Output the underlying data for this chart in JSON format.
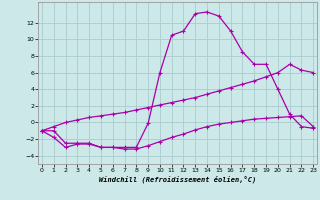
{
  "xlabel": "Windchill (Refroidissement éolien,°C)",
  "background_color": "#cce8e8",
  "grid_color": "#aacccc",
  "line_color": "#aa00aa",
  "x_ticks": [
    0,
    1,
    2,
    3,
    4,
    5,
    6,
    7,
    8,
    9,
    10,
    11,
    12,
    13,
    14,
    15,
    16,
    17,
    18,
    19,
    20,
    21,
    22,
    23
  ],
  "y_ticks": [
    -4,
    -2,
    0,
    2,
    4,
    6,
    8,
    10,
    12
  ],
  "xlim": [
    -0.3,
    23.3
  ],
  "ylim": [
    -5.0,
    14.5
  ],
  "series": {
    "line1_x": [
      0,
      1,
      2,
      3,
      4,
      5,
      6,
      7,
      8,
      9,
      10,
      11,
      12,
      13,
      14,
      15,
      16,
      17,
      18,
      19,
      20,
      21,
      22,
      23
    ],
    "line1_y": [
      -1.0,
      -1.8,
      -3.0,
      -2.6,
      -2.6,
      -3.0,
      -3.0,
      -3.0,
      -3.0,
      -0.1,
      6.0,
      10.5,
      11.0,
      13.1,
      13.3,
      12.8,
      11.0,
      8.5,
      7.0,
      7.0,
      4.0,
      1.0,
      -0.5,
      -0.7
    ],
    "line2_x": [
      0,
      1,
      2,
      3,
      4,
      5,
      6,
      7,
      8,
      9,
      10,
      11,
      12,
      13,
      14,
      15,
      16,
      17,
      18,
      19,
      20,
      21,
      22,
      23
    ],
    "line2_y": [
      -1.0,
      -0.5,
      0.0,
      0.3,
      0.6,
      0.8,
      1.0,
      1.2,
      1.5,
      1.8,
      2.1,
      2.4,
      2.7,
      3.0,
      3.4,
      3.8,
      4.2,
      4.6,
      5.0,
      5.5,
      6.0,
      7.0,
      6.3,
      6.0
    ],
    "line3_x": [
      0,
      1,
      2,
      3,
      4,
      5,
      6,
      7,
      8,
      9,
      10,
      11,
      12,
      13,
      14,
      15,
      16,
      17,
      18,
      19,
      20,
      21,
      22,
      23
    ],
    "line3_y": [
      -1.0,
      -1.0,
      -2.5,
      -2.5,
      -2.5,
      -3.0,
      -3.0,
      -3.2,
      -3.2,
      -2.8,
      -2.3,
      -1.8,
      -1.4,
      -0.9,
      -0.5,
      -0.2,
      0.0,
      0.2,
      0.4,
      0.5,
      0.6,
      0.7,
      0.8,
      -0.5
    ]
  }
}
